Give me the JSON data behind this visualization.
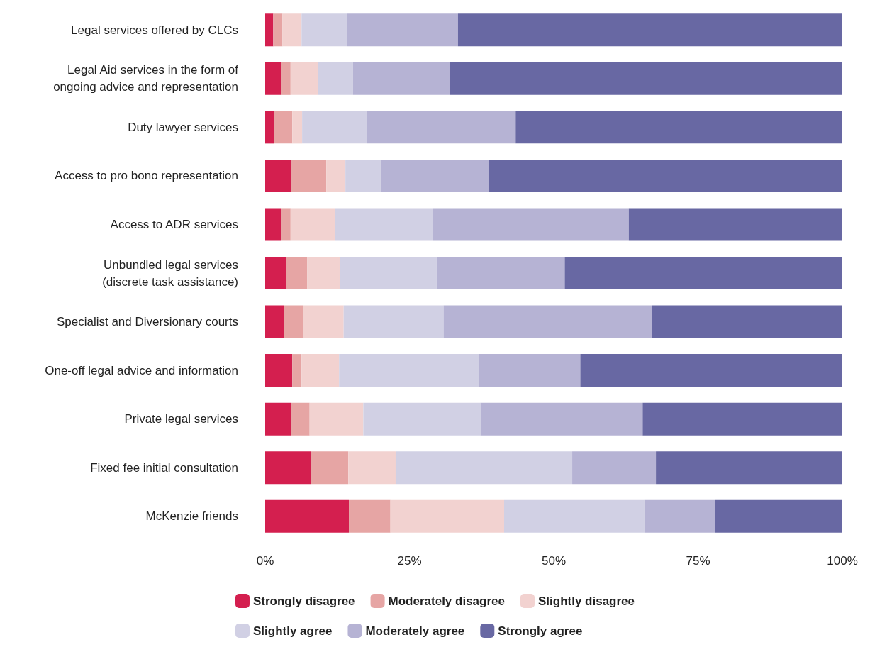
{
  "chart_data": {
    "type": "bar",
    "orientation": "horizontal",
    "stacked": true,
    "legend": "bottom",
    "grid": false,
    "categories": [
      "Legal services offered by CLCs",
      "Legal Aid services in the form of\nongoing advice and representation",
      "Duty lawyer services",
      "Access to pro bono representation",
      "Access to ADR services",
      "Unbundled legal services\n(discrete task assistance)",
      "Specialist and Diversionary courts",
      "One-off legal advice and information",
      "Private legal services",
      "Fixed fee initial consultation",
      "McKenzie friends"
    ],
    "xlim": [
      0,
      100
    ],
    "xticks": [
      {
        "value": 0,
        "label": "0%"
      },
      {
        "value": 25,
        "label": "25%"
      },
      {
        "value": 50,
        "label": "50%"
      },
      {
        "value": 75,
        "label": "75%"
      },
      {
        "value": 100,
        "label": "100%"
      }
    ],
    "series": [
      {
        "name": "Strongly disagree",
        "color": "#d41f4f",
        "values": [
          1.4,
          2.8,
          1.5,
          4.5,
          2.8,
          3.6,
          3.2,
          4.7,
          4.5,
          7.9,
          14.5
        ]
      },
      {
        "name": "Moderately disagree",
        "color": "#e6a5a4",
        "values": [
          1.6,
          1.6,
          3.2,
          6.1,
          1.6,
          3.7,
          3.4,
          1.6,
          3.2,
          6.5,
          7.2
        ]
      },
      {
        "name": "Slightly disagree",
        "color": "#f2d2d0",
        "values": [
          3.3,
          4.7,
          1.7,
          3.3,
          7.7,
          5.7,
          7.0,
          6.5,
          9.3,
          8.2,
          19.7
        ]
      },
      {
        "name": "Slightly agree",
        "color": "#d1d0e4",
        "values": [
          7.9,
          6.1,
          11.2,
          6.1,
          17.0,
          16.7,
          17.3,
          24.2,
          20.3,
          30.6,
          24.3
        ]
      },
      {
        "name": "Moderately agree",
        "color": "#b6b3d4",
        "values": [
          19.2,
          16.8,
          25.8,
          18.8,
          33.9,
          22.2,
          36.1,
          17.6,
          28.1,
          14.5,
          12.3
        ]
      },
      {
        "name": "Strongly agree",
        "color": "#6868a3",
        "values": [
          66.6,
          68.0,
          56.6,
          61.2,
          37.0,
          48.1,
          33.0,
          45.4,
          34.6,
          32.3,
          22.0
        ]
      }
    ]
  }
}
